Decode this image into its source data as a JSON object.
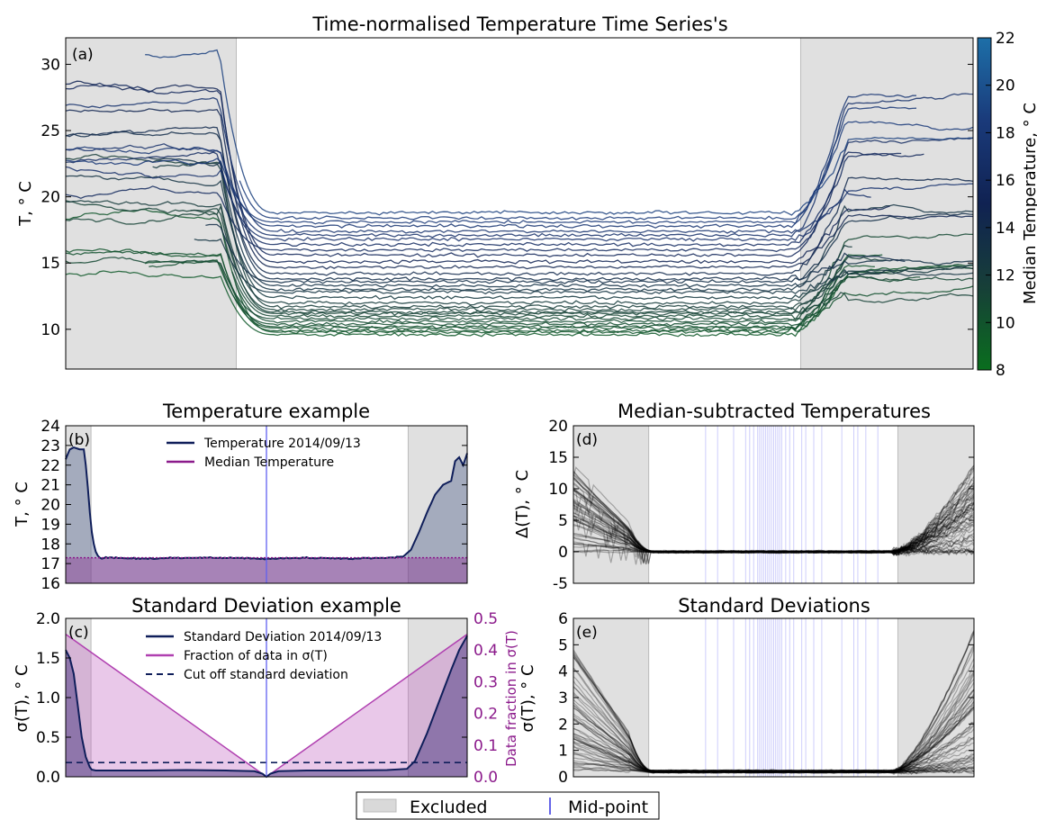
{
  "figure": {
    "legend": {
      "items": [
        {
          "label": "Excluded",
          "kind": "patch",
          "color": "#d9d9d9"
        },
        {
          "label": "Mid-point",
          "kind": "vline",
          "color": "#3030e0"
        }
      ]
    }
  },
  "chart_data": [
    {
      "id": "a",
      "type": "line",
      "panel_label": "(a)",
      "title": "Time-normalised Temperature Time Series's",
      "ylabel": "T, ° C",
      "xlabel": "",
      "ylim": [
        7,
        32
      ],
      "yticks": [
        10,
        15,
        20,
        25,
        30
      ],
      "excluded_fraction": [
        0,
        0.188,
        0.81,
        1
      ],
      "colorbar": {
        "label": "Median Temperature, ° C",
        "range": [
          8,
          22
        ],
        "ticks": [
          8,
          10,
          12,
          14,
          16,
          18,
          20,
          22
        ],
        "colors": [
          "#0a6e1e",
          "#173f38",
          "#102252",
          "#1a3a7a",
          "#1d6fa8"
        ]
      },
      "series_medians": [
        9.6,
        9.8,
        9.9,
        10.1,
        10.2,
        10.4,
        10.6,
        10.8,
        11.0,
        11.2,
        11.3,
        11.5,
        11.7,
        12.0,
        12.4,
        12.8,
        13.0,
        13.3,
        13.6,
        13.8,
        14.2,
        14.7,
        15.1,
        15.6,
        16.0,
        16.4,
        16.8,
        17.1,
        17.4,
        17.8,
        18.1,
        18.4,
        18.8
      ]
    },
    {
      "id": "b",
      "type": "line",
      "panel_label": "(b)",
      "title": "Temperature example",
      "ylabel": "T, ° C",
      "ylim": [
        16,
        24
      ],
      "yticks": [
        16,
        17,
        18,
        19,
        20,
        21,
        22,
        23,
        24
      ],
      "excluded_fraction": [
        0,
        0.063,
        0.853,
        1
      ],
      "midpoint": 0.5,
      "median": 17.3,
      "legend": [
        "Temperature 2014/09/13",
        "Median Temperature"
      ],
      "series": [
        {
          "name": "Temperature 2014/09/13",
          "color": "#0f1e5a",
          "x": [
            0,
            0.01,
            0.02,
            0.035,
            0.045,
            0.05,
            0.055,
            0.06,
            0.065,
            0.07,
            0.075,
            0.08,
            0.085,
            0.09,
            0.1,
            0.12,
            0.2,
            0.3,
            0.4,
            0.5,
            0.6,
            0.7,
            0.8,
            0.84,
            0.86,
            0.88,
            0.9,
            0.92,
            0.94,
            0.96,
            0.97,
            0.98,
            0.99,
            1.0
          ],
          "y": [
            22.3,
            22.8,
            22.9,
            22.8,
            22.8,
            22.0,
            20.9,
            19.6,
            18.6,
            18.0,
            17.6,
            17.4,
            17.3,
            17.25,
            17.3,
            17.3,
            17.25,
            17.3,
            17.3,
            17.25,
            17.3,
            17.25,
            17.3,
            17.35,
            17.7,
            18.6,
            19.6,
            20.5,
            21.0,
            21.2,
            22.2,
            22.4,
            22.0,
            22.6
          ]
        },
        {
          "name": "Median Temperature",
          "color": "#8b1a8b",
          "value": 17.3
        }
      ]
    },
    {
      "id": "c",
      "type": "line",
      "panel_label": "(c)",
      "title": "Standard Deviation example",
      "ylabel": "σ(T), ° C",
      "y2label": "Data fraction in σ(T)",
      "ylim": [
        0,
        2.0
      ],
      "yticks": [
        0.0,
        0.5,
        1.0,
        1.5,
        2.0
      ],
      "y2lim": [
        0,
        0.5
      ],
      "y2ticks": [
        0.0,
        0.1,
        0.2,
        0.3,
        0.4,
        0.5
      ],
      "excluded_fraction": [
        0,
        0.063,
        0.853,
        1
      ],
      "midpoint": 0.5,
      "legend": [
        "Standard Deviation 2014/09/13",
        "Fraction of data in σ(T)",
        "Cut off standard deviation"
      ],
      "series": [
        {
          "name": "Standard Deviation 2014/09/13",
          "color": "#0f1e5a",
          "x": [
            0,
            0.01,
            0.02,
            0.03,
            0.04,
            0.05,
            0.06,
            0.065,
            0.075,
            0.09,
            0.2,
            0.3,
            0.4,
            0.47,
            0.49,
            0.5,
            0.51,
            0.53,
            0.6,
            0.7,
            0.8,
            0.85,
            0.87,
            0.9,
            0.93,
            0.96,
            0.98,
            1.0
          ],
          "y": [
            1.6,
            1.5,
            1.3,
            0.9,
            0.5,
            0.25,
            0.12,
            0.09,
            0.08,
            0.08,
            0.08,
            0.085,
            0.08,
            0.07,
            0.04,
            0.0,
            0.04,
            0.07,
            0.08,
            0.08,
            0.085,
            0.1,
            0.2,
            0.55,
            0.95,
            1.35,
            1.6,
            1.78
          ]
        },
        {
          "name": "Fraction of data in σ(T)",
          "color": "#b040b0",
          "x": [
            0,
            0.5,
            1
          ],
          "y": [
            0.45,
            0.0,
            0.45
          ]
        },
        {
          "name": "Cut off standard deviation",
          "color": "#0f1e5a",
          "value": 0.18
        }
      ]
    },
    {
      "id": "d",
      "type": "line",
      "panel_label": "(d)",
      "title": "Median-subtracted Temperatures",
      "ylabel": "Δ(T), ° C",
      "ylim": [
        -5,
        20
      ],
      "yticks": [
        -5,
        0,
        5,
        10,
        15,
        20
      ],
      "excluded_fraction": [
        0,
        0.188,
        0.81,
        1
      ],
      "midpoints": [
        0.33,
        0.36,
        0.4,
        0.43,
        0.44,
        0.45,
        0.46,
        0.465,
        0.47,
        0.475,
        0.48,
        0.485,
        0.49,
        0.495,
        0.5,
        0.505,
        0.51,
        0.515,
        0.52,
        0.53,
        0.54,
        0.55,
        0.57,
        0.58,
        0.6,
        0.62,
        0.67,
        0.7,
        0.71,
        0.73,
        0.76
      ]
    },
    {
      "id": "e",
      "type": "line",
      "panel_label": "(e)",
      "title": "Standard Deviations",
      "ylabel": "σ(T), ° C",
      "ylim": [
        0,
        6
      ],
      "yticks": [
        0,
        1,
        2,
        3,
        4,
        5,
        6
      ],
      "excluded_fraction": [
        0,
        0.188,
        0.81,
        1
      ],
      "midpoints": [
        0.33,
        0.36,
        0.4,
        0.43,
        0.44,
        0.45,
        0.46,
        0.465,
        0.47,
        0.475,
        0.48,
        0.485,
        0.49,
        0.495,
        0.5,
        0.505,
        0.51,
        0.515,
        0.52,
        0.53,
        0.54,
        0.55,
        0.57,
        0.58,
        0.6,
        0.62,
        0.67,
        0.7,
        0.71,
        0.73,
        0.76
      ]
    }
  ]
}
